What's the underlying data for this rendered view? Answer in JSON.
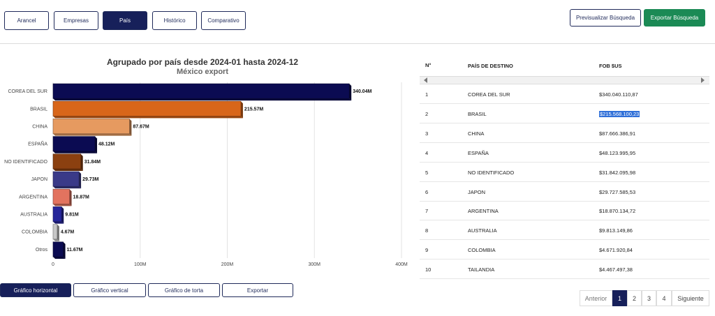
{
  "tabs": [
    {
      "label": "Arancel",
      "active": false
    },
    {
      "label": "Empresas",
      "active": false
    },
    {
      "label": "País",
      "active": true
    },
    {
      "label": "Histórico",
      "active": false
    },
    {
      "label": "Comparativo",
      "active": false
    }
  ],
  "actions": {
    "preview_label": "Previsualizar Búsqueda",
    "export_label": "Exportar Búsqueda"
  },
  "chart_data": {
    "type": "bar",
    "orientation": "horizontal",
    "title": "Agrupado por país desde 2024-01 hasta 2024-12",
    "subtitle": "México export",
    "categories": [
      "COREA DEL SUR",
      "BRASIL",
      "CHINA",
      "ESPAÑA",
      "NO IDENTIFICADO",
      "JAPON",
      "ARGENTINA",
      "AUSTRALIA",
      "COLOMBIA",
      "Otros"
    ],
    "values": [
      340.04,
      215.57,
      87.67,
      48.12,
      31.84,
      29.73,
      18.87,
      9.81,
      4.67,
      11.67
    ],
    "value_labels": [
      "340.04M",
      "215.57M",
      "87.67M",
      "48.12M",
      "31.84M",
      "29.73M",
      "18.87M",
      "9.81M",
      "4.67M",
      "11.67M"
    ],
    "colors": [
      "#0b0b52",
      "#d8661a",
      "#e69a60",
      "#0b0b52",
      "#8b4010",
      "#3a3a88",
      "#e2735f",
      "#26269a",
      "#c8c8c8",
      "#0b0b52"
    ],
    "xlim": [
      0,
      400
    ],
    "x_ticks": [
      0,
      100,
      200,
      300,
      400
    ],
    "x_tick_labels": [
      "0",
      "100M",
      "200M",
      "300M",
      "400M"
    ],
    "grid": true
  },
  "chart_buttons": [
    {
      "label": "Gráfico horizontal",
      "active": true
    },
    {
      "label": "Gráfico vertical",
      "active": false
    },
    {
      "label": "Gráfico de torta",
      "active": false
    },
    {
      "label": "Exportar",
      "active": false
    }
  ],
  "table": {
    "headers": [
      "N°",
      "PAÍS DE DESTINO",
      "FOB $US"
    ],
    "rows": [
      {
        "n": "1",
        "pais": "COREA DEL SUR",
        "fob": "$340.040.110,87"
      },
      {
        "n": "2",
        "pais": "BRASIL",
        "fob": "$215.568.100,23"
      },
      {
        "n": "3",
        "pais": "CHINA",
        "fob": "$87.666.386,91"
      },
      {
        "n": "4",
        "pais": "ESPAÑA",
        "fob": "$48.123.995,95"
      },
      {
        "n": "5",
        "pais": "NO IDENTIFICADO",
        "fob": "$31.842.095,98"
      },
      {
        "n": "6",
        "pais": "JAPON",
        "fob": "$29.727.585,53"
      },
      {
        "n": "7",
        "pais": "ARGENTINA",
        "fob": "$18.870.134,72"
      },
      {
        "n": "8",
        "pais": "AUSTRALIA",
        "fob": "$9.813.149,86"
      },
      {
        "n": "9",
        "pais": "COLOMBIA",
        "fob": "$4.671.920,84"
      },
      {
        "n": "10",
        "pais": "TAILANDIA",
        "fob": "$4.467.497,38"
      }
    ],
    "selected_cell": "$215.568.100,23"
  },
  "pagination": {
    "prev_label": "Anterior",
    "pages": [
      "1",
      "2",
      "3",
      "4"
    ],
    "current": "1",
    "next_label": "Siguiente"
  }
}
